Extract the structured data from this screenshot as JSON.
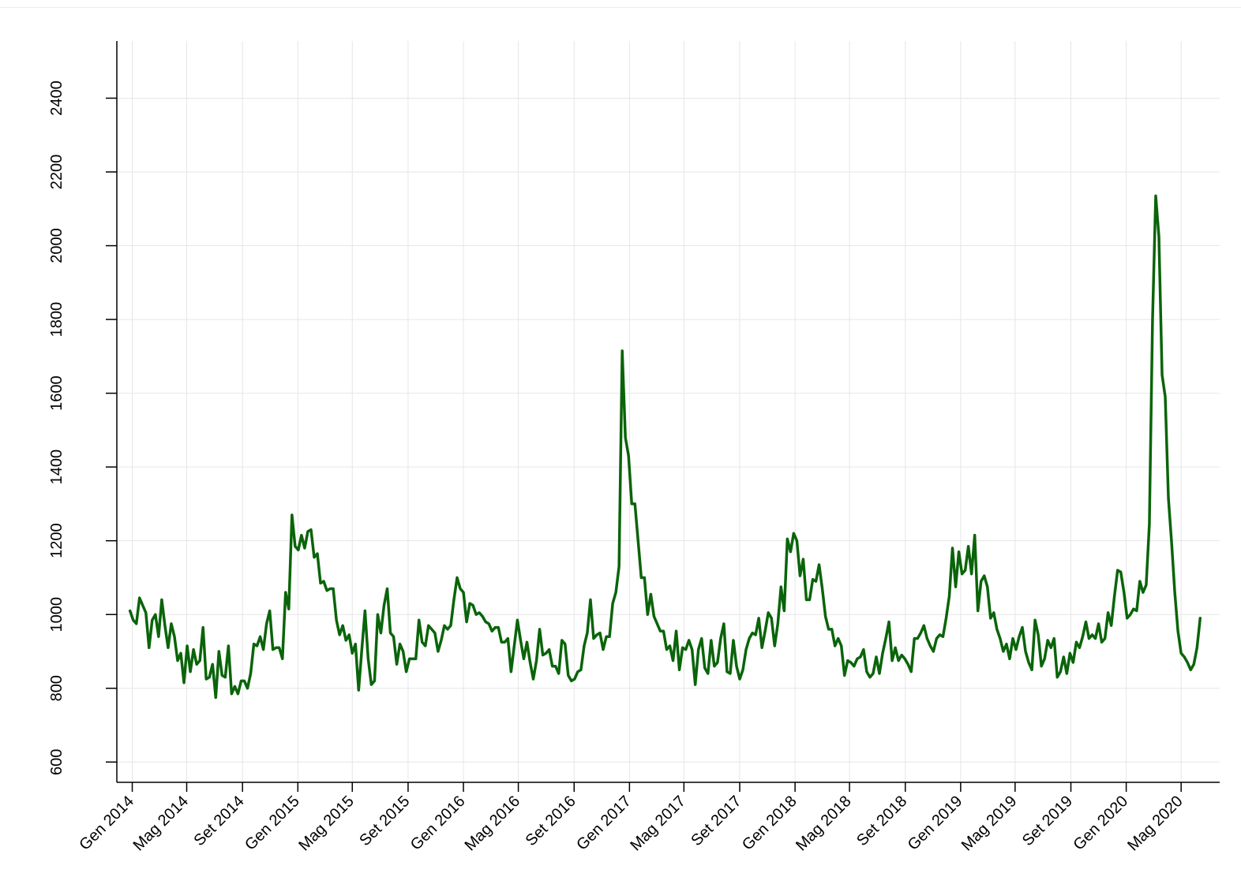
{
  "chart_data": {
    "type": "line",
    "title": "",
    "xlabel": "",
    "ylabel": "",
    "ylim": [
      545,
      2555
    ],
    "xlim": [
      "2013-11-28",
      "2020-07-25"
    ],
    "grid": true,
    "legend": "none",
    "colors": {
      "line": "#0a640a",
      "grid": "#e6e6e6",
      "axis": "#000000",
      "background": "#ffffff"
    },
    "y_ticks": [
      600,
      800,
      1000,
      1200,
      1400,
      1600,
      1800,
      2000,
      2200,
      2400
    ],
    "y_tick_labels": [
      "600",
      "800",
      "1000",
      "1200",
      "1400",
      "1600",
      "1800",
      "2000",
      "2200",
      "2400"
    ],
    "x_ticks": [
      "2014-01-01",
      "2014-05-01",
      "2014-09-01",
      "2015-01-01",
      "2015-05-01",
      "2015-09-01",
      "2016-01-01",
      "2016-05-01",
      "2016-09-01",
      "2017-01-01",
      "2017-05-01",
      "2017-09-01",
      "2018-01-01",
      "2018-05-01",
      "2018-09-01",
      "2019-01-01",
      "2019-05-01",
      "2019-09-01",
      "2020-01-01",
      "2020-05-01"
    ],
    "x_tick_labels": [
      "Gen 2014",
      "Mag 2014",
      "Set 2014",
      "Gen 2015",
      "Mag 2015",
      "Set 2015",
      "Gen 2016",
      "Mag 2016",
      "Set 2016",
      "Gen 2017",
      "Mag 2017",
      "Set 2017",
      "Gen 2018",
      "Mag 2018",
      "Set 2018",
      "Gen 2019",
      "Mag 2019",
      "Set 2019",
      "Gen 2020",
      "Mag 2020"
    ],
    "series": [
      {
        "start": "2013-12-27",
        "step_days": 7,
        "values": [
          1010,
          985,
          975,
          1045,
          1025,
          1005,
          910,
          985,
          1000,
          940,
          1040,
          970,
          910,
          975,
          940,
          875,
          895,
          815,
          915,
          845,
          905,
          865,
          875,
          965,
          825,
          830,
          865,
          775,
          900,
          835,
          830,
          915,
          785,
          805,
          785,
          820,
          820,
          800,
          840,
          920,
          915,
          940,
          905,
          975,
          1010,
          905,
          910,
          910,
          880,
          1060,
          1015,
          1270,
          1185,
          1175,
          1215,
          1180,
          1225,
          1230,
          1155,
          1165,
          1085,
          1090,
          1065,
          1070,
          1070,
          985,
          945,
          970,
          930,
          945,
          895,
          920,
          795,
          905,
          1010,
          880,
          810,
          820,
          1000,
          950,
          1025,
          1070,
          950,
          940,
          865,
          920,
          900,
          845,
          880,
          880,
          880,
          985,
          925,
          915,
          970,
          960,
          950,
          900,
          930,
          970,
          960,
          970,
          1040,
          1100,
          1070,
          1060,
          980,
          1030,
          1025,
          1000,
          1005,
          995,
          980,
          975,
          955,
          965,
          965,
          925,
          925,
          935,
          845,
          915,
          985,
          930,
          880,
          925,
          870,
          825,
          875,
          960,
          890,
          895,
          905,
          860,
          860,
          840,
          930,
          920,
          835,
          820,
          825,
          845,
          850,
          915,
          950,
          1040,
          935,
          945,
          950,
          905,
          940,
          940,
          1030,
          1060,
          1130,
          1715,
          1480,
          1430,
          1300,
          1300,
          1200,
          1100,
          1100,
          1000,
          1055,
          995,
          975,
          955,
          955,
          905,
          915,
          875,
          955,
          850,
          910,
          905,
          930,
          905,
          810,
          905,
          935,
          855,
          840,
          930,
          860,
          870,
          935,
          975,
          845,
          840,
          930,
          860,
          825,
          850,
          905,
          935,
          950,
          945,
          990,
          910,
          955,
          1005,
          990,
          915,
          975,
          1075,
          1010,
          1205,
          1170,
          1220,
          1200,
          1105,
          1150,
          1040,
          1040,
          1095,
          1090,
          1135,
          1070,
          995,
          960,
          960,
          915,
          935,
          915,
          835,
          875,
          870,
          860,
          880,
          885,
          905,
          845,
          830,
          840,
          885,
          840,
          895,
          935,
          980,
          875,
          910,
          875,
          890,
          880,
          865,
          845,
          935,
          935,
          950,
          970,
          935,
          915,
          900,
          935,
          945,
          940,
          990,
          1050,
          1180,
          1075,
          1170,
          1110,
          1120,
          1185,
          1110,
          1215,
          1010,
          1090,
          1105,
          1075,
          990,
          1005,
          960,
          935,
          900,
          920,
          880,
          935,
          905,
          940,
          965,
          900,
          870,
          850,
          985,
          945,
          860,
          880,
          930,
          910,
          935,
          830,
          845,
          885,
          840,
          895,
          870,
          925,
          910,
          940,
          980,
          935,
          945,
          935,
          975,
          925,
          935,
          1005,
          970,
          1050,
          1120,
          1115,
          1060,
          990,
          1000,
          1015,
          1010,
          1090,
          1060,
          1080,
          1245,
          1800,
          2135,
          2025,
          1650,
          1590,
          1315,
          1195,
          1060,
          955,
          895,
          885,
          870,
          850,
          865,
          910,
          990
        ]
      }
    ]
  }
}
